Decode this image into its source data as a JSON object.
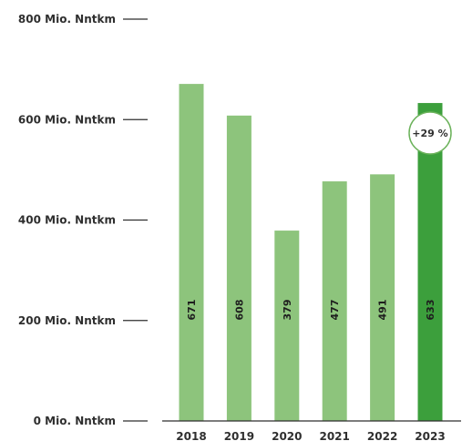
{
  "chart_data": {
    "type": "bar",
    "title": "",
    "xlabel": "",
    "ylabel": "",
    "ylim": [
      0,
      800
    ],
    "y_ticks": [
      0,
      200,
      400,
      600,
      800
    ],
    "y_tick_labels": [
      "0 Mio. Nntkm",
      "200 Mio. Nntkm",
      "400 Mio. Nntkm",
      "600 Mio. Nntkm",
      "800 Mio. Nntkm"
    ],
    "categories": [
      "2018",
      "2019",
      "2020",
      "2021",
      "2022",
      "2023"
    ],
    "values": [
      671,
      608,
      379,
      477,
      491,
      633
    ],
    "value_labels": [
      "671",
      "608",
      "379",
      "477",
      "491",
      "633"
    ],
    "colors": {
      "default_bar": "#8dc47c",
      "highlight_bar": "#3c9f3c",
      "badge_border": "#6bb25a",
      "axis": "#2f2f2f"
    },
    "highlight_category": "2023",
    "annotation": {
      "category": "2023",
      "text": "+29 %"
    },
    "grid": false
  }
}
